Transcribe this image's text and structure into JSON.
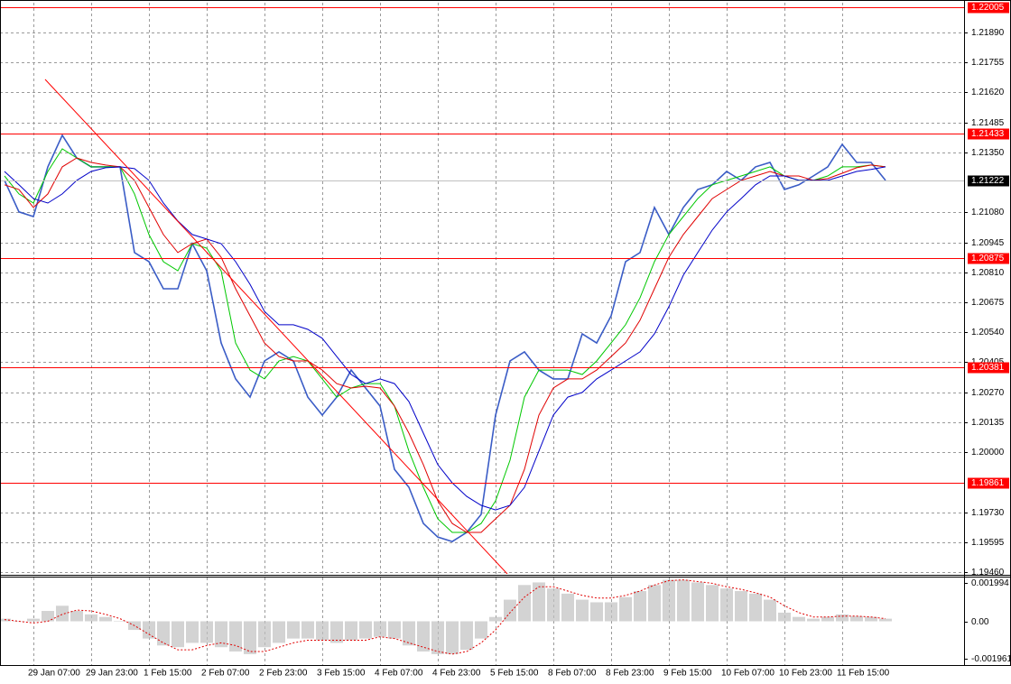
{
  "chart_data": [
    {
      "type": "line",
      "categories": [
        null,
        null,
        "29 Jan 07:00",
        null,
        null,
        null,
        "29 Jan 23:00",
        null,
        null,
        null,
        "1 Feb 15:00",
        null,
        null,
        null,
        "2 Feb 07:00",
        null,
        null,
        null,
        "2 Feb 23:00",
        null,
        null,
        null,
        "3 Feb 15:00",
        null,
        null,
        null,
        "4 Feb 07:00",
        null,
        null,
        null,
        "4 Feb 23:00",
        null,
        null,
        null,
        "5 Feb 15:00",
        null,
        null,
        null,
        "8 Feb 07:00",
        null,
        null,
        null,
        "8 Feb 23:00",
        null,
        null,
        null,
        "9 Feb 15:00",
        null,
        null,
        null,
        "10 Feb 07:00",
        null,
        null,
        null,
        "10 Feb 23:00",
        null,
        null,
        null,
        "11 Feb 15:00",
        null,
        null,
        null
      ],
      "series": [
        {
          "color": "#3a5cc6",
          "values": [
            1.21224,
            1.21082,
            1.21061,
            1.21285,
            1.21427,
            1.21325,
            1.21285,
            1.21285,
            1.21285,
            1.20899,
            1.20858,
            1.20736,
            1.20736,
            1.20939,
            1.20817,
            1.20492,
            1.2033,
            1.20248,
            1.20411,
            1.20452,
            1.20411,
            1.20248,
            1.20167,
            1.20248,
            1.2037,
            1.20289,
            1.20208,
            1.19923,
            1.19842,
            1.19679,
            1.19618,
            1.19598,
            1.19639,
            1.1972,
            1.20167,
            1.20411,
            1.20452,
            1.2037,
            1.2033,
            1.2033,
            1.20533,
            1.20492,
            1.20614,
            1.20858,
            1.20899,
            1.21102,
            1.2098,
            1.21102,
            1.21183,
            1.21204,
            1.21264,
            1.21224,
            1.21285,
            1.21305,
            1.21183,
            1.21204,
            1.21244,
            1.21285,
            1.21386,
            1.21305,
            1.21305,
            1.21224
          ]
        },
        {
          "color": "#00c800",
          "values": [
            1.21244,
            1.21163,
            1.21122,
            1.21264,
            1.21366,
            1.21325,
            1.21285,
            1.21285,
            1.21285,
            1.21163,
            1.2098,
            1.20858,
            1.20817,
            1.20939,
            1.20919,
            1.20817,
            1.20492,
            1.2037,
            1.2033,
            1.20411,
            1.20431,
            1.20411,
            1.2033,
            1.20248,
            1.20289,
            1.20309,
            1.20309,
            1.20208,
            1.20005,
            1.19842,
            1.197,
            1.19639,
            1.19639,
            1.19679,
            1.19781,
            1.19964,
            1.20248,
            1.2037,
            1.2037,
            1.2037,
            1.2035,
            1.20411,
            1.20492,
            1.20574,
            1.20695,
            1.20858,
            1.2098,
            1.21061,
            1.21142,
            1.21204,
            1.21224,
            1.21244,
            1.21264,
            1.21285,
            1.21244,
            1.21224,
            1.21224,
            1.21244,
            1.21285,
            1.21285,
            1.21293,
            1.21285
          ]
        },
        {
          "color": "#e00000",
          "values": [
            1.21204,
            1.21183,
            1.21102,
            1.21163,
            1.21285,
            1.21325,
            1.21305,
            1.21293,
            1.21285,
            1.21224,
            1.21102,
            1.2098,
            1.20899,
            1.20939,
            1.2096,
            1.20878,
            1.20736,
            1.20614,
            1.20492,
            1.20431,
            1.20411,
            1.20411,
            1.2037,
            1.20309,
            1.20289,
            1.20297,
            1.20289,
            1.20208,
            1.20086,
            1.19944,
            1.19781,
            1.19679,
            1.19639,
            1.19639,
            1.197,
            1.19761,
            1.19923,
            1.20167,
            1.20289,
            1.2033,
            1.2033,
            1.2037,
            1.20431,
            1.20492,
            1.20594,
            1.20736,
            1.20878,
            1.2098,
            1.21061,
            1.21142,
            1.21183,
            1.21224,
            1.21244,
            1.21264,
            1.21244,
            1.21244,
            1.21224,
            1.21232,
            1.21256,
            1.21281,
            1.21293,
            1.21285
          ]
        },
        {
          "color": "#0000c8",
          "values": [
            1.21264,
            1.21204,
            1.21142,
            1.21122,
            1.21163,
            1.21224,
            1.21264,
            1.21281,
            1.21285,
            1.21277,
            1.21224,
            1.21122,
            1.21041,
            1.2098,
            1.2096,
            1.20939,
            1.20858,
            1.20756,
            1.20634,
            1.20574,
            1.20574,
            1.20553,
            1.20513,
            1.20431,
            1.2035,
            1.20309,
            1.2033,
            1.20309,
            1.20228,
            1.20086,
            1.19944,
            1.19862,
            1.19801,
            1.19761,
            1.1974,
            1.19761,
            1.19842,
            1.20005,
            1.20167,
            1.20248,
            1.20269,
            1.2033,
            1.2037,
            1.20411,
            1.20452,
            1.20533,
            1.20655,
            1.20797,
            1.20899,
            1.21,
            1.21082,
            1.21142,
            1.21204,
            1.21244,
            1.21244,
            1.21224,
            1.21224,
            1.21224,
            1.21244,
            1.21264,
            1.21273,
            1.21285
          ]
        }
      ],
      "levels": [
        1.22005,
        1.21433,
        1.20875,
        1.20381,
        1.19861
      ],
      "level_color": "#ff0000",
      "current_price": 1.21222,
      "ylim": [
        1.19448,
        1.22024
      ],
      "yticks": [
        {
          "value": 1.2189,
          "label": "1.21890"
        },
        1.21755,
        {
          "value": 1.2162,
          "label": "1.21620"
        },
        1.21485,
        {
          "value": 1.2135,
          "label": "1.21350"
        },
        {
          "value": 1.2108,
          "label": "1.21080"
        },
        1.20945,
        {
          "value": 1.2081,
          "label": "1.20810"
        },
        1.20675,
        {
          "value": 1.2054,
          "label": "1.20540"
        },
        1.20405,
        {
          "value": 1.2027,
          "label": "1.20270"
        },
        1.20135,
        {
          "value": 1.2,
          "label": "1.20000"
        },
        {
          "value": 1.1973,
          "label": "1.19730"
        },
        1.19595,
        {
          "value": 1.1946,
          "label": "1.19460"
        }
      ],
      "grid": true
    },
    {
      "type": "macd",
      "histogram": {
        "color": "#c0c0c0",
        "values": [
          0.000136,
          0,
          0.000136,
          0.000544,
          0.000817,
          0.000544,
          0.000363,
          0.000227,
          0,
          -0.000454,
          -0.000907,
          -0.001271,
          -0.001361,
          -0.001134,
          -0.001134,
          -0.001361,
          -0.001588,
          -0.001724,
          -0.001361,
          -0.001134,
          -0.000907,
          -0.000907,
          -0.000998,
          -0.001134,
          -0.000998,
          -0.000907,
          -0.000817,
          -0.000907,
          -0.001271,
          -0.001588,
          -0.001724,
          -0.001724,
          -0.001497,
          -0.000907,
          0.000227,
          0.001134,
          0.001906,
          0.002042,
          0.001724,
          0.001452,
          0.001134,
          0.000998,
          0.000998,
          0.001271,
          0.001588,
          0.001906,
          0.002178,
          0.002178,
          0.002042,
          0.001906,
          0.001724,
          0.001588,
          0.001452,
          0.001134,
          0.000454,
          0.000227,
          0.000136,
          0.000227,
          0.000363,
          0.000272,
          0.000227,
          0.000136
        ]
      },
      "signal": {
        "color": "#e00000",
        "values": [
          9.1e-05,
          0,
          -9.1e-05,
          0,
          0.000363,
          0.00059,
          0.000544,
          0.000363,
          0.000136,
          -0.000227,
          -0.000681,
          -0.001134,
          -0.001497,
          -0.001497,
          -0.001271,
          -0.001134,
          -0.001271,
          -0.001588,
          -0.001588,
          -0.001361,
          -0.001134,
          -0.000998,
          -0.000998,
          -0.000998,
          -0.000998,
          -0.000998,
          -0.000817,
          -0.000907,
          -0.001134,
          -0.001361,
          -0.001588,
          -0.001724,
          -0.001588,
          -0.001134,
          -0.000454,
          0.000454,
          0.001271,
          0.001815,
          0.001815,
          0.001588,
          0.001361,
          0.001225,
          0.001225,
          0.001361,
          0.001588,
          0.001906,
          0.002133,
          0.002178,
          0.002087,
          0.001996,
          0.001815,
          0.001679,
          0.001497,
          0.001271,
          0.000817,
          0.000454,
          0.000227,
          0.000227,
          0.000272,
          0.000272,
          0.000227,
          0.000136
        ]
      },
      "ylim": [
        -0.0023,
        0.0023
      ],
      "yticks": [
        0.001994,
        {
          "value": 0,
          "label": "0.00"
        },
        -0.001961
      ]
    }
  ]
}
